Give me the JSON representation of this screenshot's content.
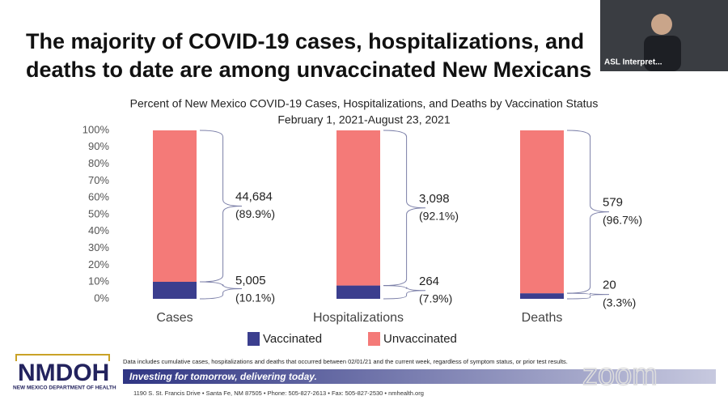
{
  "slide": {
    "title_lines": [
      "The majority of COVID-19 cases, hospitalizations, and",
      "deaths to date are among unvaccinated New Mexicans"
    ],
    "asl_label": "ASL Interpret...",
    "logo": "NMDOH",
    "logo_subtitle": "NEW MEXICO DEPARTMENT OF HEALTH",
    "note": "Data includes cumulative cases, hospitalizations and deaths that occurred between 02/01/21 and the current week, regardless of symptom status, or prior test results.",
    "banner": "Investing for tomorrow, delivering today.",
    "address": "1190 S. St. Francis Drive • Santa Fe, NM 87505 • Phone: 505-827-2613 • Fax: 505-827-2530 • nmhealth.org",
    "watermark": "zoom"
  },
  "chart_data": {
    "type": "stacked_bar",
    "title": "Percent of New Mexico COVID-19 Cases, Hospitalizations, and Deaths by Vaccination Status",
    "subtitle": "February 1, 2021-August 23, 2021",
    "categories": [
      "Cases",
      "Hospitalizations",
      "Deaths"
    ],
    "series": [
      {
        "name": "Vaccinated",
        "color": "#3b3e8e",
        "values": [
          10.1,
          7.9,
          3.3
        ],
        "value_labels": [
          "(10.1%)",
          "(7.9%)",
          "(3.3%)"
        ],
        "count_labels": [
          "5,005",
          "264",
          "20"
        ]
      },
      {
        "name": "Unvaccinated",
        "color": "#f47a78",
        "values": [
          89.9,
          92.1,
          96.7
        ],
        "value_labels": [
          "(89.9%)",
          "(92.1%)",
          "(96.7%)"
        ],
        "count_labels": [
          "44,684",
          "3,098",
          "579"
        ]
      }
    ],
    "ylim": [
      0,
      100
    ],
    "yticks": [
      {
        "value": 0,
        "label": "0%"
      },
      {
        "value": 10,
        "label": "10%"
      },
      {
        "value": 20,
        "label": "20%"
      },
      {
        "value": 30,
        "label": "30%"
      },
      {
        "value": 40,
        "label": "40%"
      },
      {
        "value": 50,
        "label": "50%"
      },
      {
        "value": 60,
        "label": "60%"
      },
      {
        "value": 70,
        "label": "70%"
      },
      {
        "value": 80,
        "label": "80%"
      },
      {
        "value": 90,
        "label": "90%"
      },
      {
        "value": 100,
        "label": "100%"
      }
    ],
    "grid": false
  }
}
